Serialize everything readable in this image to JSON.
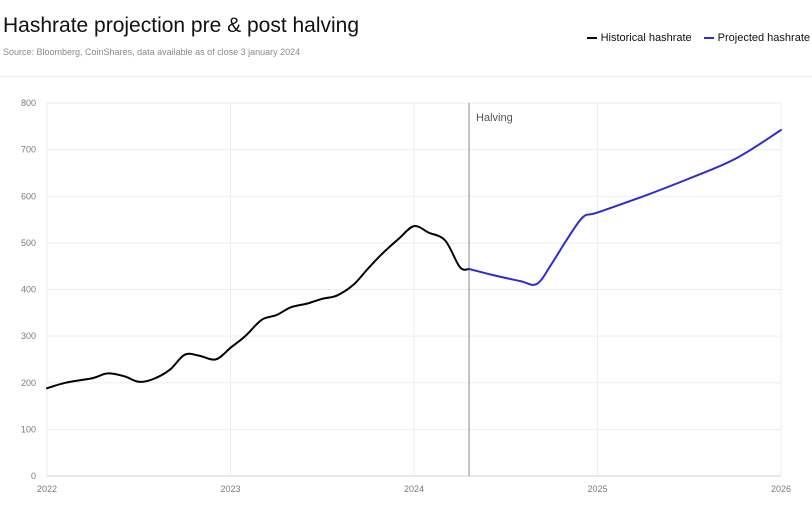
{
  "header": {
    "title": "Hashrate projection pre & post halving",
    "subtitle": "Source: Bloomberg, CoinShares, data available as of close 3 january 2024"
  },
  "chart_data": {
    "type": "line",
    "title": "Hashrate projection pre & post halving",
    "xlabel": "",
    "ylabel": "",
    "xlim": [
      2022,
      2026
    ],
    "ylim": [
      0,
      800
    ],
    "x_ticks": [
      "2022",
      "2023",
      "2024",
      "2025",
      "2026"
    ],
    "y_ticks": [
      0,
      100,
      200,
      300,
      400,
      500,
      600,
      700,
      800
    ],
    "grid": true,
    "legend_position": "top-right",
    "annotations": [
      {
        "label": "Halving",
        "x": 2024.3
      }
    ],
    "series": [
      {
        "name": "Historical hashrate",
        "color": "#000000",
        "points": [
          [
            2022.0,
            188
          ],
          [
            2022.1,
            200
          ],
          [
            2022.25,
            210
          ],
          [
            2022.33,
            220
          ],
          [
            2022.42,
            214
          ],
          [
            2022.5,
            202
          ],
          [
            2022.58,
            208
          ],
          [
            2022.67,
            228
          ],
          [
            2022.75,
            260
          ],
          [
            2022.83,
            258
          ],
          [
            2022.92,
            250
          ],
          [
            2023.0,
            275
          ],
          [
            2023.08,
            300
          ],
          [
            2023.17,
            335
          ],
          [
            2023.25,
            345
          ],
          [
            2023.33,
            362
          ],
          [
            2023.42,
            370
          ],
          [
            2023.5,
            380
          ],
          [
            2023.58,
            387
          ],
          [
            2023.67,
            410
          ],
          [
            2023.75,
            445
          ],
          [
            2023.83,
            478
          ],
          [
            2023.92,
            510
          ],
          [
            2024.0,
            536
          ],
          [
            2024.08,
            522
          ],
          [
            2024.17,
            505
          ],
          [
            2024.25,
            448
          ],
          [
            2024.3,
            444
          ]
        ]
      },
      {
        "name": "Projected hashrate",
        "color": "#2f2ad4",
        "points": [
          [
            2024.3,
            444
          ],
          [
            2024.42,
            432
          ],
          [
            2024.58,
            418
          ],
          [
            2024.67,
            412
          ],
          [
            2024.75,
            455
          ],
          [
            2024.83,
            505
          ],
          [
            2024.92,
            555
          ],
          [
            2025.0,
            565
          ],
          [
            2025.25,
            600
          ],
          [
            2025.5,
            638
          ],
          [
            2025.75,
            680
          ],
          [
            2026.0,
            742
          ]
        ]
      }
    ]
  }
}
